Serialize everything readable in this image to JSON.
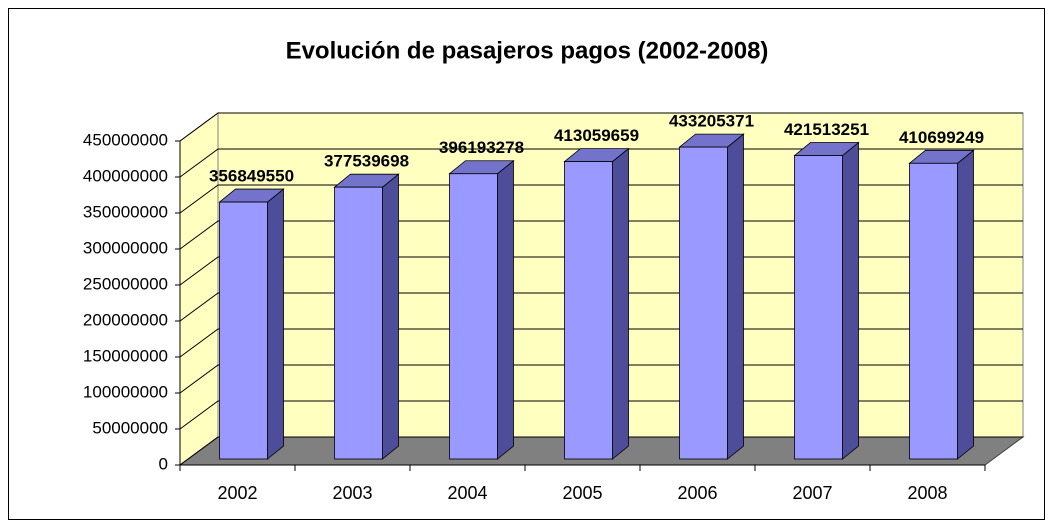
{
  "chart_data": {
    "type": "bar3d",
    "title": "Evolución de pasajeros pagos (2002-2008)",
    "categories": [
      "2002",
      "2003",
      "2004",
      "2005",
      "2006",
      "2007",
      "2008"
    ],
    "values": [
      356849550,
      377539698,
      396193278,
      413059659,
      433205371,
      421513251,
      410699249
    ],
    "color": "#9999ff",
    "ylim": [
      0,
      450000000
    ],
    "yticks": [
      0,
      50000000,
      100000000,
      150000000,
      200000000,
      250000000,
      300000000,
      350000000,
      400000000,
      450000000
    ],
    "grid": true
  }
}
